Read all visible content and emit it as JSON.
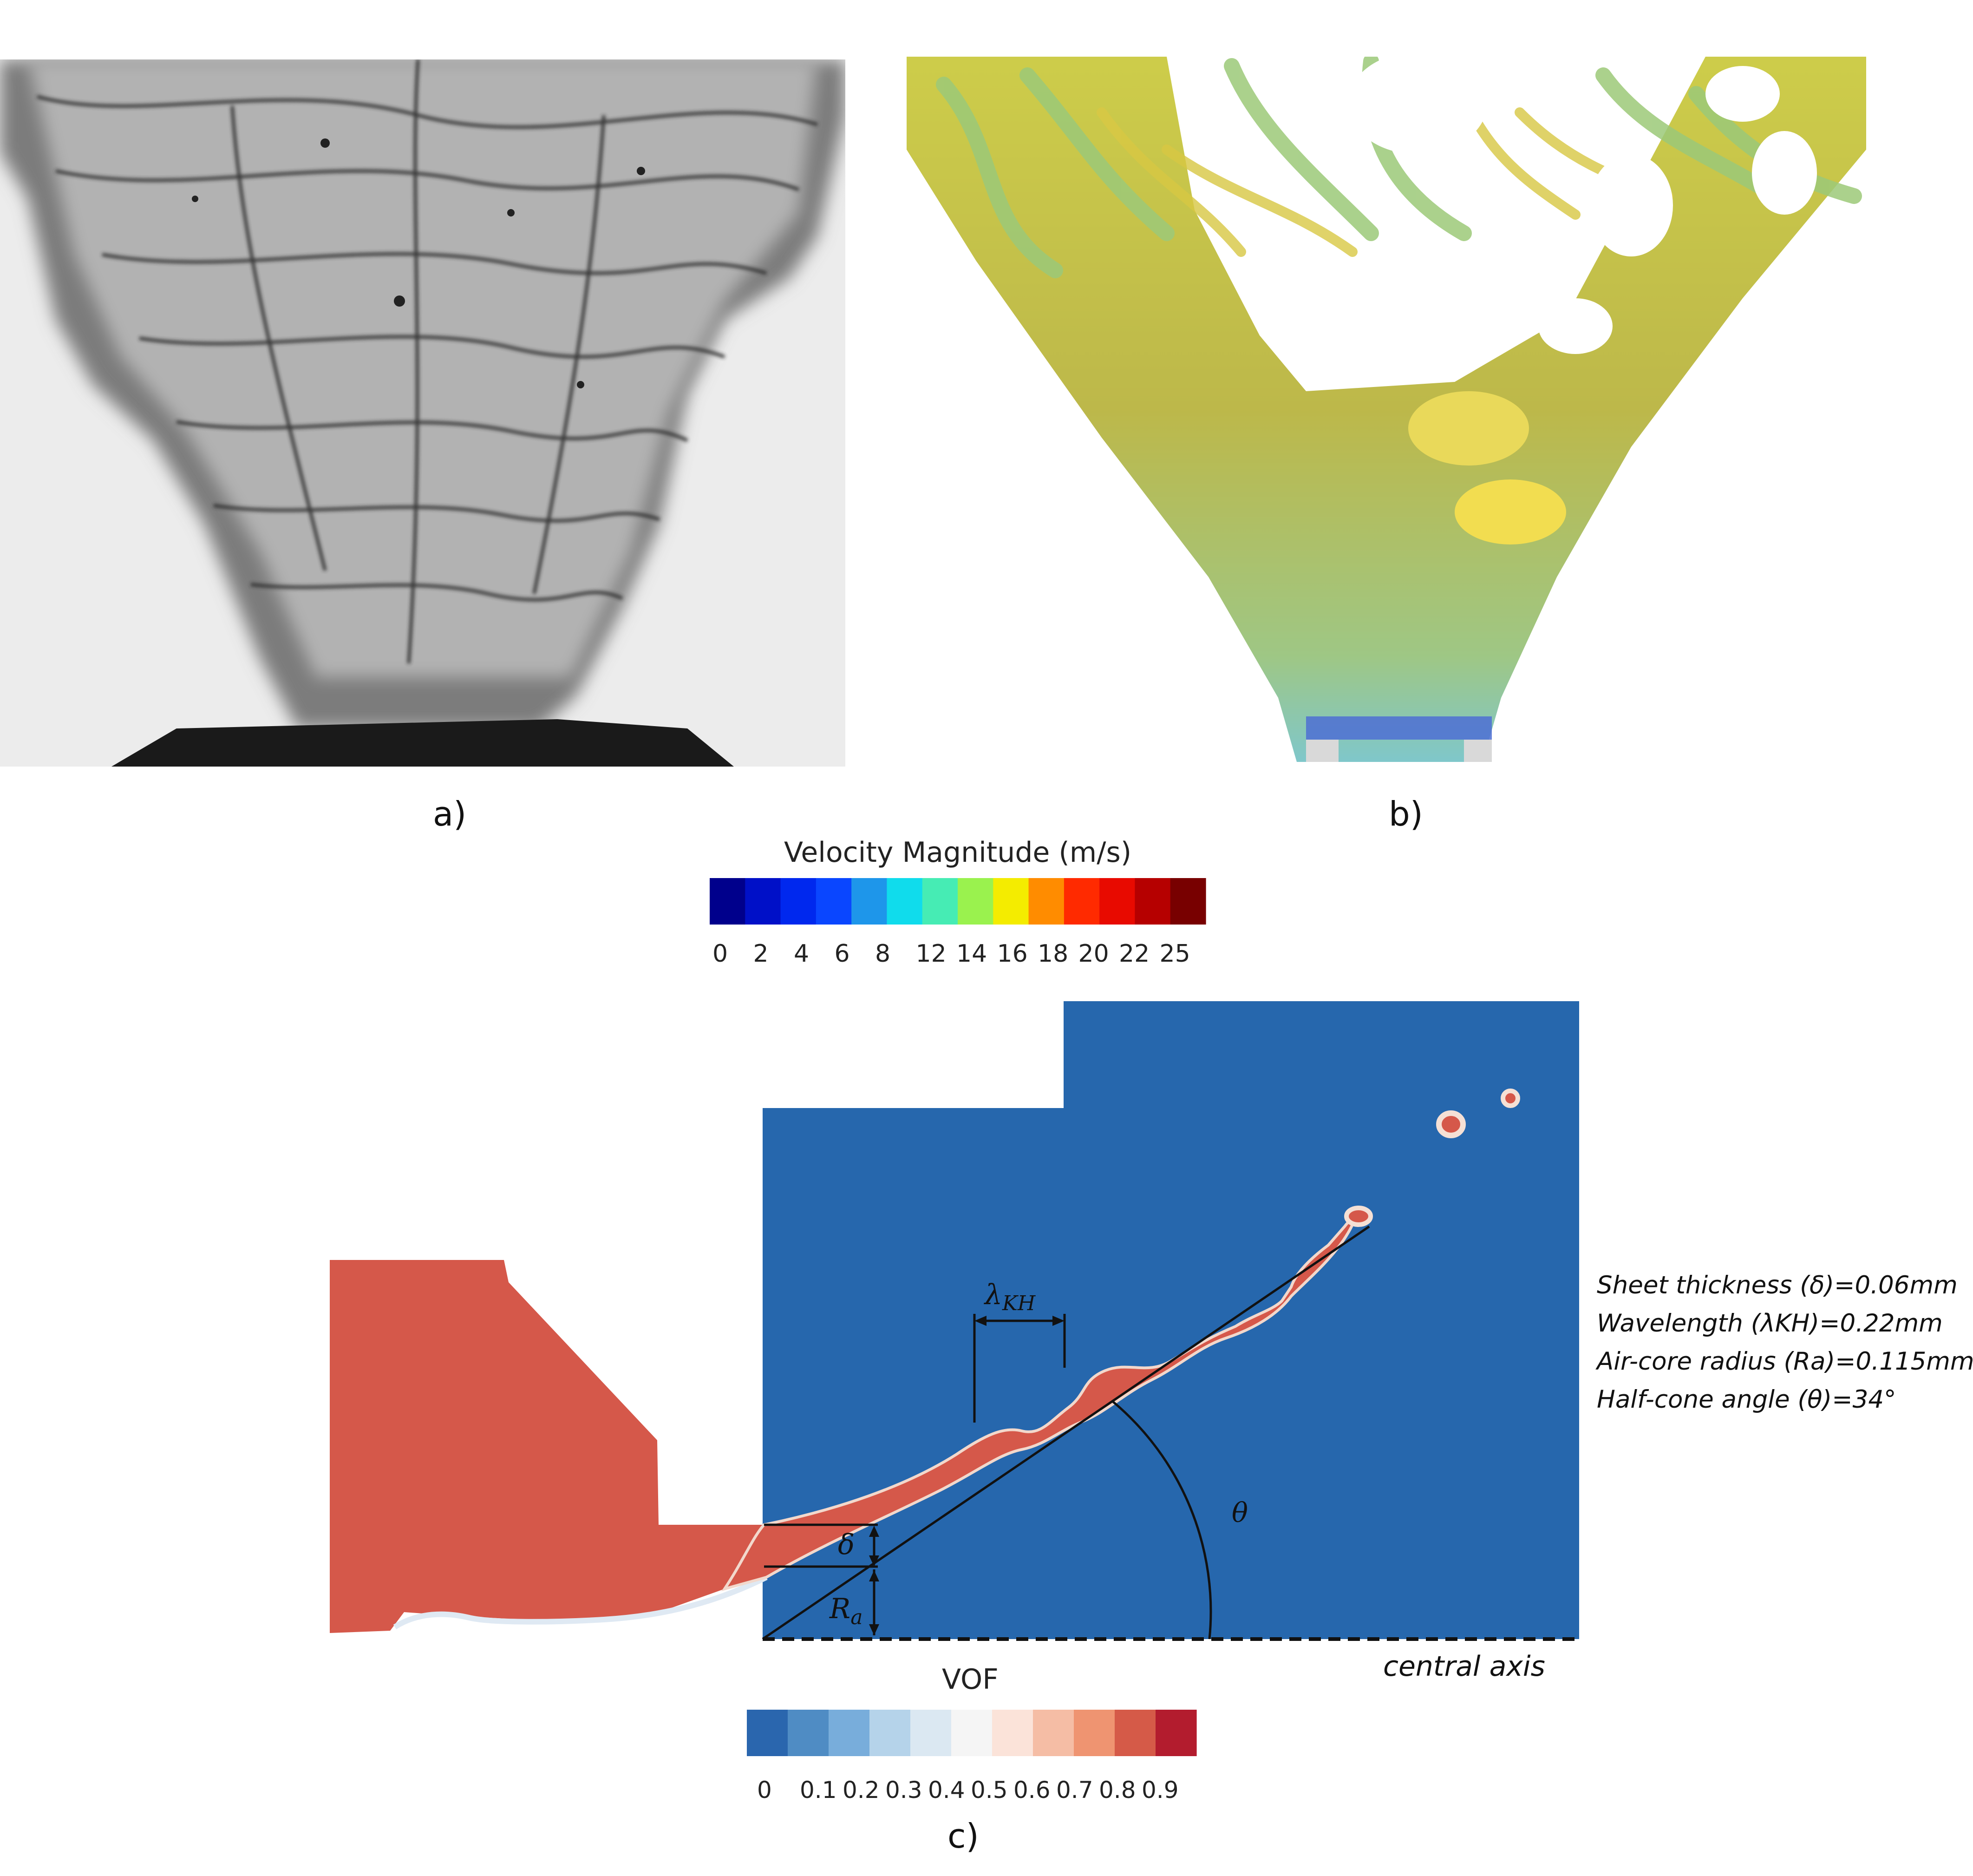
{
  "panels": {
    "a": {
      "caption": "a)"
    },
    "b": {
      "caption": "b)"
    },
    "c": {
      "caption": "c)"
    }
  },
  "velocity_colorbar": {
    "title": "Velocity Magnitude (m/s)",
    "ticks": [
      "0",
      "2",
      "4",
      "6",
      "8",
      "12",
      "14",
      "16",
      "18",
      "20",
      "22",
      "25"
    ],
    "colors": [
      "#00008c",
      "#0010c8",
      "#0028ee",
      "#0a46ff",
      "#1e96ea",
      "#10dcec",
      "#46ecb4",
      "#9af24e",
      "#f4ec00",
      "#ff8c00",
      "#ff2a00",
      "#e80a00",
      "#b60000",
      "#780000"
    ]
  },
  "vof_colorbar": {
    "title": "VOF",
    "ticks": [
      "0",
      "0.1",
      "0.2",
      "0.3",
      "0.4",
      "0.5",
      "0.6",
      "0.7",
      "0.8",
      "0.9"
    ],
    "colors": [
      "#2a66ae",
      "#4f8cc4",
      "#78addb",
      "#b5d3ea",
      "#dbe8f2",
      "#f5f5f5",
      "#fbe3d9",
      "#f5bda5",
      "#ef9471",
      "#d55a48",
      "#b31c2e"
    ]
  },
  "annotations": {
    "lambda": "λ",
    "lambda_sub": "KH",
    "delta": "δ",
    "ra": "R",
    "ra_sub": "a",
    "theta": "θ",
    "central_axis": "central axis"
  },
  "parameters": [
    {
      "label": "Sheet thickness (δ)=0.06mm"
    },
    {
      "label": "Wavelength (λKH)=0.22mm"
    },
    {
      "label": "Air-core radius (Ra)=0.115mm"
    },
    {
      "label": "Half-cone angle (θ)=34°"
    }
  ],
  "colors": {
    "liquid": "#d5584a",
    "gas": "#2667ad"
  }
}
